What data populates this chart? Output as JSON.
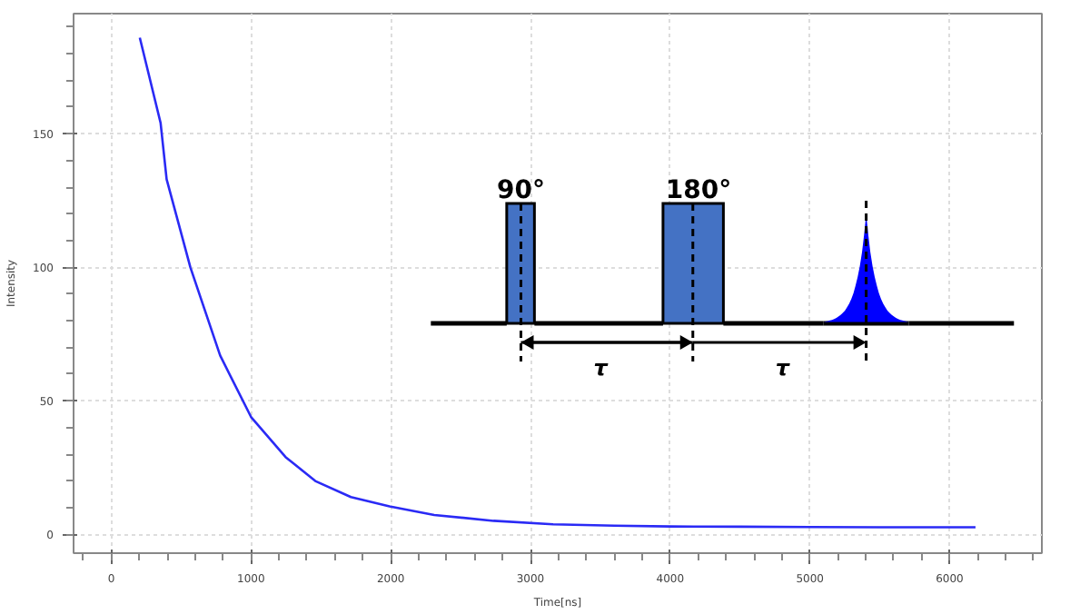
{
  "chart_data": {
    "type": "line",
    "xlabel": "Time[ns]",
    "ylabel": "Intensity",
    "x": [
      204,
      353,
      396,
      566,
      779,
      1000,
      1247,
      1460,
      1715,
      1991,
      2311,
      2736,
      3162,
      3600,
      4000,
      4500,
      5000,
      5500,
      6000,
      6185
    ],
    "series": [
      {
        "color": "#2a2af5",
        "values": [
          186,
          154,
          133,
          100,
          67,
          44,
          29,
          20,
          14,
          10.5,
          7.3,
          5.1,
          3.8,
          3.3,
          3.0,
          2.9,
          2.8,
          2.7,
          2.7,
          2.7
        ]
      }
    ],
    "xlim": [
      -270,
      6660
    ],
    "ylim": [
      -7,
      195
    ],
    "xticks": [
      0,
      1000,
      2000,
      3000,
      4000,
      5000,
      6000
    ],
    "yticks": [
      0,
      50,
      100,
      150
    ],
    "grid": true,
    "marker": "none",
    "line_style": "solid",
    "annotations": [
      "90°",
      "180°",
      "τ",
      "τ"
    ]
  }
}
